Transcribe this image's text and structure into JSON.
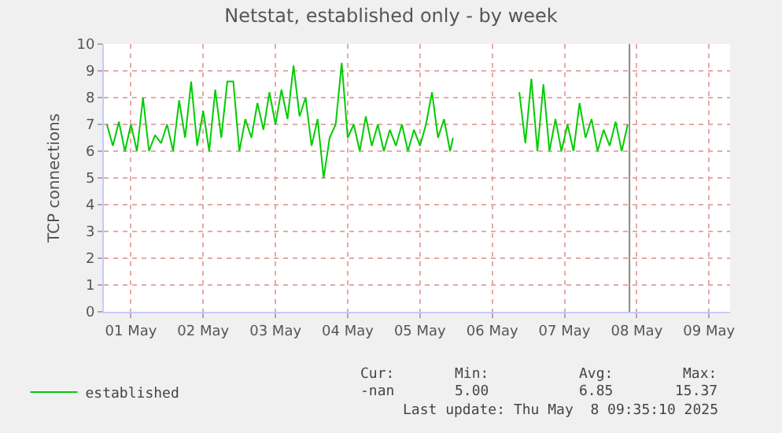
{
  "chart_data": {
    "type": "line",
    "title": "Netstat, established only - by week",
    "ylabel": "TCP connections",
    "x": [
      "2025-05-01T04:00",
      "2025-05-01T06:00",
      "2025-05-01T08:00",
      "2025-05-01T10:00",
      "2025-05-01T12:00",
      "2025-05-01T14:00",
      "2025-05-01T16:00",
      "2025-05-01T18:00",
      "2025-05-01T20:00",
      "2025-05-01T22:00",
      "2025-05-02T00:00",
      "2025-05-02T02:00",
      "2025-05-02T04:00",
      "2025-05-02T06:00",
      "2025-05-02T08:00",
      "2025-05-02T10:00",
      "2025-05-02T12:00",
      "2025-05-02T14:00",
      "2025-05-02T16:00",
      "2025-05-02T18:00",
      "2025-05-02T20:00",
      "2025-05-02T22:00",
      "2025-05-03T00:00",
      "2025-05-03T02:00",
      "2025-05-03T04:00",
      "2025-05-03T06:00",
      "2025-05-03T08:00",
      "2025-05-03T10:00",
      "2025-05-03T12:00",
      "2025-05-03T14:00",
      "2025-05-03T16:00",
      "2025-05-03T18:00",
      "2025-05-03T20:00",
      "2025-05-03T22:00",
      "2025-05-04T00:00",
      "2025-05-04T02:00",
      "2025-05-04T04:00",
      "2025-05-04T06:00",
      "2025-05-04T08:00",
      "2025-05-04T10:00",
      "2025-05-04T12:00",
      "2025-05-04T14:00",
      "2025-05-04T16:00",
      "2025-05-04T18:00",
      "2025-05-04T20:00",
      "2025-05-04T22:00",
      "2025-05-05T00:00",
      "2025-05-05T02:00",
      "2025-05-05T04:00",
      "2025-05-05T06:00",
      "2025-05-05T08:00",
      "2025-05-05T10:00",
      "2025-05-05T12:00",
      "2025-05-05T14:00",
      "2025-05-05T16:00",
      "2025-05-05T18:00",
      "2025-05-05T20:00",
      "2025-05-05T22:00",
      "2025-05-05T23:00",
      "2025-05-06T10:00",
      "2025-05-06T21:00",
      "2025-05-06T23:00",
      "2025-05-07T01:00",
      "2025-05-07T03:00",
      "2025-05-07T05:00",
      "2025-05-07T07:00",
      "2025-05-07T09:00",
      "2025-05-07T11:00",
      "2025-05-07T13:00",
      "2025-05-07T15:00",
      "2025-05-07T17:00",
      "2025-05-07T19:00",
      "2025-05-07T21:00",
      "2025-05-07T23:00",
      "2025-05-08T01:00",
      "2025-05-08T03:00",
      "2025-05-08T05:00",
      "2025-05-08T07:00",
      "2025-05-08T09:00"
    ],
    "series": [
      {
        "name": "established",
        "color": "#00cc00",
        "values": [
          7.0,
          6.2,
          7.1,
          6.0,
          7.0,
          6.0,
          8.0,
          6.0,
          6.6,
          6.3,
          7.0,
          6.0,
          7.9,
          6.5,
          8.6,
          6.2,
          7.5,
          6.0,
          8.3,
          6.5,
          8.6,
          8.6,
          6.0,
          7.2,
          6.5,
          7.8,
          6.8,
          8.2,
          7.0,
          8.3,
          7.2,
          9.2,
          7.3,
          8.0,
          6.2,
          7.2,
          5.0,
          6.5,
          7.0,
          9.3,
          6.5,
          7.0,
          6.0,
          7.3,
          6.2,
          7.0,
          6.0,
          6.8,
          6.2,
          7.0,
          6.0,
          6.8,
          6.2,
          7.0,
          8.2,
          6.5,
          7.2,
          6.0,
          6.5,
          null,
          8.2,
          6.3,
          8.7,
          6.0,
          8.5,
          6.0,
          7.2,
          6.0,
          7.0,
          6.0,
          7.8,
          6.5,
          7.2,
          6.0,
          6.8,
          6.2,
          7.1,
          6.0,
          7.0
        ]
      }
    ],
    "xlim": [
      "2025-05-01T03:00",
      "2025-05-09T19:00"
    ],
    "xticks": [
      {
        "value": "2025-05-01T12:00",
        "label": "01 May"
      },
      {
        "value": "2025-05-02T12:00",
        "label": "02 May"
      },
      {
        "value": "2025-05-03T12:00",
        "label": "03 May"
      },
      {
        "value": "2025-05-04T12:00",
        "label": "04 May"
      },
      {
        "value": "2025-05-05T12:00",
        "label": "05 May"
      },
      {
        "value": "2025-05-06T12:00",
        "label": "06 May"
      },
      {
        "value": "2025-05-07T12:00",
        "label": "07 May"
      },
      {
        "value": "2025-05-08T12:00",
        "label": "08 May"
      },
      {
        "value": "2025-05-09T12:00",
        "label": "09 May"
      }
    ],
    "ylim": [
      0,
      10
    ],
    "yticks": [
      0,
      1,
      2,
      3,
      4,
      5,
      6,
      7,
      8,
      9,
      10
    ],
    "grid": true,
    "legend": "bottom left",
    "marker": "none",
    "line_style": "solid",
    "ref_lines": [
      {
        "axis": "x",
        "value": "2025-05-08T09:35",
        "color": "#888888"
      }
    ],
    "annotations": [
      "Cur:",
      "Min:",
      "Avg:",
      "Max:",
      "-nan",
      "5.00",
      "6.85",
      "15.37",
      "Last update: Thu May  8 09:35:10 2025"
    ]
  }
}
